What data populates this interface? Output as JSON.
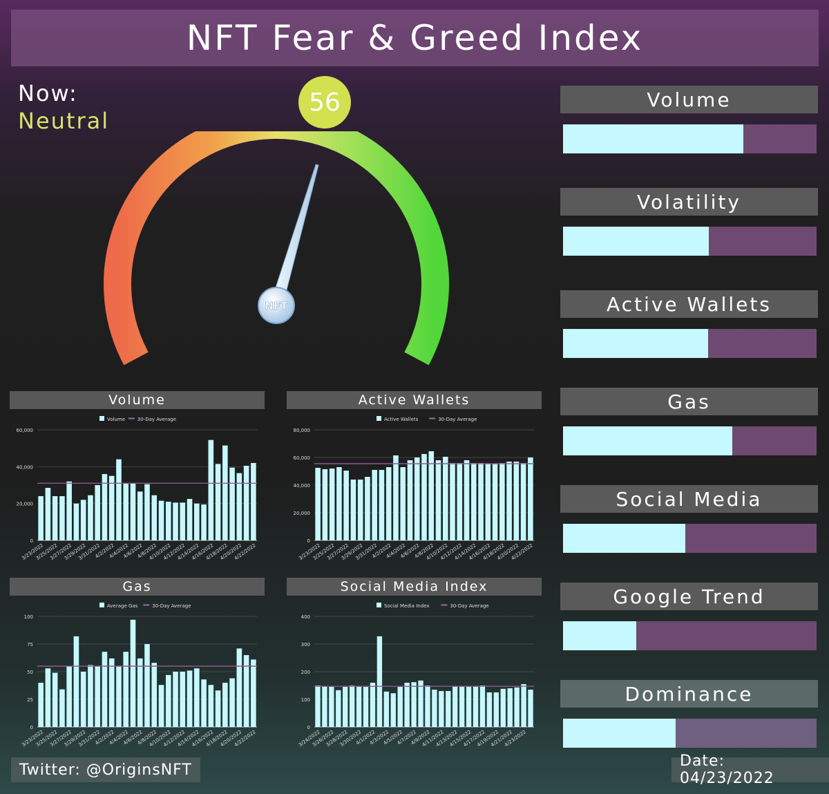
{
  "header": {
    "title": "NFT Fear & Greed Index"
  },
  "now": {
    "label": "Now:",
    "value": "Neutral",
    "score": "56",
    "score_number": 56,
    "needle_text": "NFT"
  },
  "colors": {
    "bar": "#c6f8ff",
    "avg_line": "#7a4a7a",
    "track": "#6e4a73",
    "accent": "#d3e04f"
  },
  "metrics": [
    {
      "label": "Volume",
      "fraction": 0.71
    },
    {
      "label": "Volatility",
      "fraction": 0.575
    },
    {
      "label": "Active Wallets",
      "fraction": 0.572
    },
    {
      "label": "Gas",
      "fraction": 0.667
    },
    {
      "label": "Social Media",
      "fraction": 0.483
    },
    {
      "label": "Google Trend",
      "fraction": 0.289
    },
    {
      "label": "Dominance",
      "fraction": 0.445
    }
  ],
  "chart_data": [
    {
      "type": "bar",
      "title": "Volume",
      "legend": [
        "Volume",
        "30-Day Average"
      ],
      "ylim": [
        0,
        60000
      ],
      "yticks": [
        "0",
        "20,000",
        "40,000",
        "60,000"
      ],
      "ytick_values": [
        0,
        20000,
        40000,
        60000
      ],
      "average": 31000,
      "x_tick_labels": [
        "3/23/2022",
        "3/25/2022",
        "3/27/2022",
        "3/29/2022",
        "3/31/2022",
        "4/2/2022",
        "4/4/2022",
        "4/6/2022",
        "4/8/2022",
        "4/10/2022",
        "4/12/2022",
        "4/14/2022",
        "4/16/2022",
        "4/18/2022",
        "4/20/2022",
        "4/22/2022"
      ],
      "values": [
        24000,
        28500,
        24000,
        24000,
        32000,
        20000,
        22000,
        24500,
        30000,
        36000,
        35000,
        44000,
        31000,
        31000,
        26500,
        30500,
        24500,
        21500,
        21000,
        20500,
        20500,
        22500,
        20000,
        19500,
        54500,
        41500,
        51500,
        39500,
        36500,
        40500,
        42000
      ]
    },
    {
      "type": "bar",
      "title": "Active Wallets",
      "legend": [
        "Active Wallets",
        "30-Day Average"
      ],
      "ylim": [
        0,
        80000
      ],
      "yticks": [
        "0",
        "20,000",
        "40,000",
        "60,000",
        "80,000"
      ],
      "ytick_values": [
        0,
        20000,
        40000,
        60000,
        80000
      ],
      "average": 55500,
      "x_tick_labels": [
        "3/23/2022",
        "3/25/2022",
        "3/27/2022",
        "3/29/2022",
        "3/31/2022",
        "4/2/2022",
        "4/4/2022",
        "4/6/2022",
        "4/8/2022",
        "4/10/2022",
        "4/12/2022",
        "4/14/2022",
        "4/16/2022",
        "4/18/2022",
        "4/20/2022",
        "4/22/2022"
      ],
      "values": [
        52500,
        51500,
        52000,
        53000,
        50500,
        44000,
        44000,
        46000,
        51000,
        51000,
        53000,
        61500,
        53000,
        58000,
        60000,
        62500,
        64500,
        58000,
        60500,
        56000,
        56000,
        58000,
        56000,
        56000,
        55500,
        55500,
        56000,
        57000,
        57000,
        56000,
        60000
      ]
    },
    {
      "type": "bar",
      "title": "Gas",
      "legend": [
        "Average Gas",
        "30-Day Average"
      ],
      "ylim": [
        0,
        100
      ],
      "yticks": [
        "0",
        "25",
        "50",
        "75",
        "100"
      ],
      "ytick_values": [
        0,
        25,
        50,
        75,
        100
      ],
      "average": 55,
      "x_tick_labels": [
        "3/23/2022",
        "3/25/2022",
        "3/27/2022",
        "3/29/2022",
        "3/31/2022",
        "4/2/2022",
        "4/4/2022",
        "4/6/2022",
        "4/8/2022",
        "4/10/2022",
        "4/12/2022",
        "4/14/2022",
        "4/16/2022",
        "4/18/2022",
        "4/20/2022",
        "4/22/2022"
      ],
      "values": [
        40,
        53,
        49,
        34,
        55,
        82,
        50,
        56,
        55,
        68,
        62,
        55,
        68,
        97,
        62,
        75,
        58,
        38,
        47,
        50,
        50,
        51,
        53,
        43,
        38,
        33,
        40,
        44,
        71,
        65,
        61
      ]
    },
    {
      "type": "bar",
      "title": "Social Media Index",
      "legend": [
        "Social Media Index",
        "30-Day Average"
      ],
      "ylim": [
        0,
        400
      ],
      "yticks": [
        "0",
        "100",
        "200",
        "300",
        "400"
      ],
      "ytick_values": [
        0,
        100,
        200,
        300,
        400
      ],
      "average": 147,
      "x_tick_labels": [
        "3/24/2022",
        "3/26/2022",
        "3/28/2022",
        "3/30/2022",
        "4/1/2022",
        "4/3/2022",
        "4/5/2022",
        "4/7/2022",
        "4/9/2022",
        "4/11/2022",
        "4/13/2022",
        "4/15/2022",
        "4/17/2022",
        "4/19/2022",
        "4/21/2022",
        "4/23/2022"
      ],
      "values": [
        150,
        148,
        145,
        133,
        145,
        150,
        148,
        145,
        160,
        328,
        128,
        122,
        145,
        160,
        162,
        168,
        150,
        135,
        130,
        130,
        148,
        148,
        148,
        148,
        150,
        125,
        125,
        138,
        140,
        143,
        155,
        135
      ]
    }
  ]
}
